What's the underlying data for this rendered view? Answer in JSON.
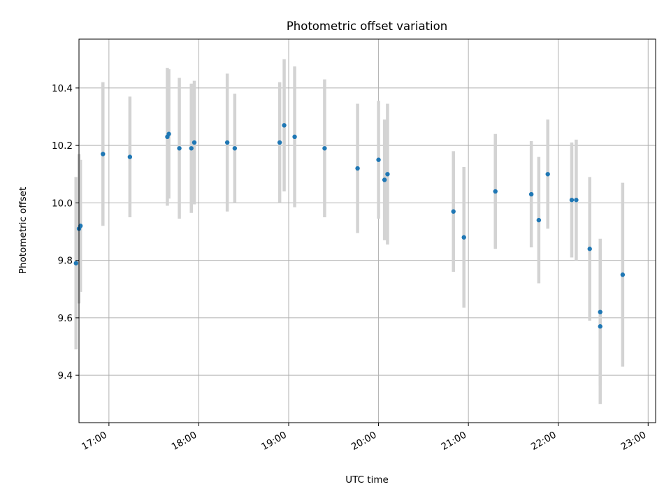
{
  "chart_data": {
    "type": "scatter",
    "title": "Photometric offset variation",
    "xlabel": "UTC time",
    "ylabel": "Photometric offset",
    "xlim": [
      "16:40",
      "23:05"
    ],
    "ylim": [
      9.235,
      10.57
    ],
    "x_ticks": [
      "17:00",
      "18:00",
      "19:00",
      "20:00",
      "21:00",
      "22:00",
      "23:00"
    ],
    "y_ticks": [
      9.4,
      9.6,
      9.8,
      10.0,
      10.2,
      10.4
    ],
    "y_tick_labels": [
      "9.4",
      "9.6",
      "9.8",
      "10.0",
      "10.2",
      "10.4"
    ],
    "grid": true,
    "colors": {
      "point": "#1f77b4",
      "errorbar": "#d3d3d3"
    },
    "series": [
      {
        "points": [
          {
            "x": "16:38",
            "y": 9.79,
            "yerr": 0.3
          },
          {
            "x": "16:40",
            "y": 9.91,
            "yerr": 0.26
          },
          {
            "x": "16:41",
            "y": 9.92,
            "yerr": 0.23
          },
          {
            "x": "16:56",
            "y": 10.17,
            "yerr": 0.25
          },
          {
            "x": "17:14",
            "y": 10.16,
            "yerr": 0.21
          },
          {
            "x": "17:39",
            "y": 10.23,
            "yerr": 0.24
          },
          {
            "x": "17:40",
            "y": 10.24,
            "yerr": 0.225
          },
          {
            "x": "17:47",
            "y": 10.19,
            "yerr": 0.245
          },
          {
            "x": "17:55",
            "y": 10.19,
            "yerr": 0.225
          },
          {
            "x": "17:57",
            "y": 10.21,
            "yerr": 0.215
          },
          {
            "x": "18:19",
            "y": 10.21,
            "yerr": 0.24
          },
          {
            "x": "18:24",
            "y": 10.19,
            "yerr": 0.19
          },
          {
            "x": "18:54",
            "y": 10.21,
            "yerr": 0.21
          },
          {
            "x": "18:57",
            "y": 10.27,
            "yerr": 0.23
          },
          {
            "x": "19:04",
            "y": 10.23,
            "yerr": 0.245
          },
          {
            "x": "19:24",
            "y": 10.19,
            "yerr": 0.24
          },
          {
            "x": "19:46",
            "y": 10.12,
            "yerr": 0.225
          },
          {
            "x": "20:00",
            "y": 10.15,
            "yerr": 0.205
          },
          {
            "x": "20:04",
            "y": 10.08,
            "yerr": 0.21
          },
          {
            "x": "20:06",
            "y": 10.1,
            "yerr": 0.245
          },
          {
            "x": "20:50",
            "y": 9.97,
            "yerr": 0.21
          },
          {
            "x": "20:57",
            "y": 9.88,
            "yerr": 0.245
          },
          {
            "x": "21:18",
            "y": 10.04,
            "yerr": 0.2
          },
          {
            "x": "21:42",
            "y": 10.03,
            "yerr": 0.185
          },
          {
            "x": "21:47",
            "y": 9.94,
            "yerr": 0.22
          },
          {
            "x": "21:53",
            "y": 10.1,
            "yerr": 0.19
          },
          {
            "x": "22:09",
            "y": 10.01,
            "yerr": 0.2
          },
          {
            "x": "22:12",
            "y": 10.01,
            "yerr": 0.21
          },
          {
            "x": "22:21",
            "y": 9.84,
            "yerr": 0.25
          },
          {
            "x": "22:28",
            "y": 9.62,
            "yerr": 0.255
          },
          {
            "x": "22:28",
            "y": 9.57,
            "yerr": 0.27
          },
          {
            "x": "22:43",
            "y": 9.75,
            "yerr": 0.32
          }
        ]
      }
    ]
  }
}
